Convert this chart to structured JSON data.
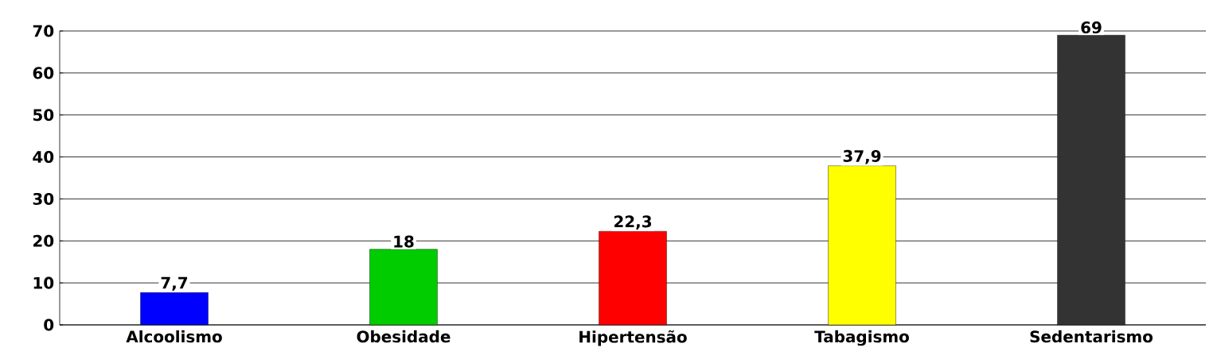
{
  "chart_data": {
    "type": "bar",
    "categories": [
      "Alcoolismo",
      "Obesidade",
      "Hipertensão",
      "Tabagismo",
      "Sedentarismo"
    ],
    "values": [
      7.7,
      18,
      22.3,
      37.9,
      69
    ],
    "value_labels": [
      "7,7",
      "18",
      "22,3",
      "37,9",
      "69"
    ],
    "colors": [
      "#0000ff",
      "#00cc00",
      "#ff0000",
      "#ffff00",
      "#333333"
    ],
    "ylim": [
      0,
      70
    ],
    "yticks": [
      0,
      10,
      20,
      30,
      40,
      50,
      60,
      70
    ],
    "grid": "y"
  }
}
